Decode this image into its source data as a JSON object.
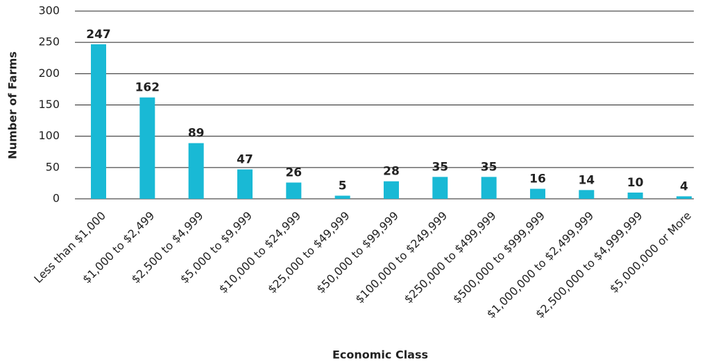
{
  "chart_data": {
    "type": "bar",
    "x_label": "Economic Class",
    "y_label": "Number of Farms",
    "categories": [
      "Less than $1,000",
      "$1,000 to $2,499",
      "$2,500 to $4,999",
      "$5,000 to $9,999",
      "$10,000 to $24,999",
      "$25,000 to $49,999",
      "$50,000 to $99,999",
      "$100,000 to $249,999",
      "$250,000 to $499,999",
      "$500,000 to $999,999",
      "$1,000,000 to $2,499,999",
      "$2,500,000 to $4,999,999",
      "$5,000,000 or More"
    ],
    "values": [
      247,
      162,
      89,
      47,
      26,
      5,
      28,
      35,
      35,
      16,
      14,
      10,
      4
    ],
    "color": "#19b9d5",
    "ylim": [
      0,
      300
    ],
    "yticks": [
      0,
      50,
      100,
      150,
      200,
      250,
      300
    ],
    "grid": true
  }
}
